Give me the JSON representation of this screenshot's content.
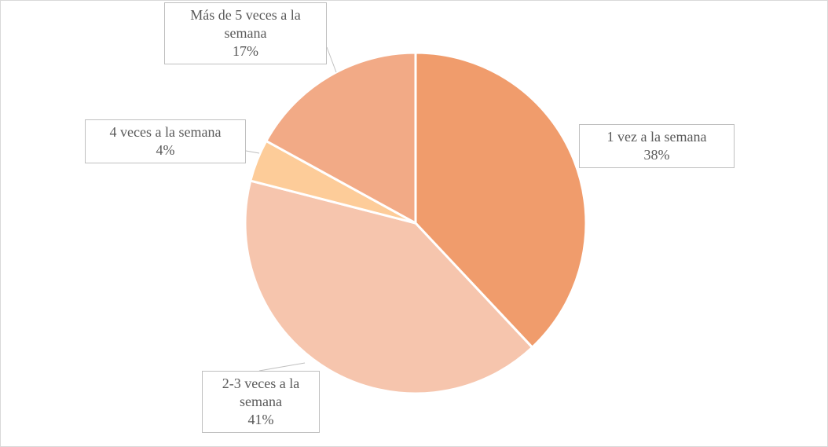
{
  "chart_data": {
    "type": "pie",
    "categories": [
      "1 vez a la semana",
      "2-3 veces a la semana",
      "4 veces a la semana",
      "Más de 5 veces a la semana"
    ],
    "values": [
      38,
      41,
      4,
      17
    ],
    "value_labels": [
      "38%",
      "41%",
      "4%",
      "17%"
    ],
    "colors": [
      "#f09c6c",
      "#f6c5ad",
      "#fdcc99",
      "#f2aa86"
    ]
  }
}
